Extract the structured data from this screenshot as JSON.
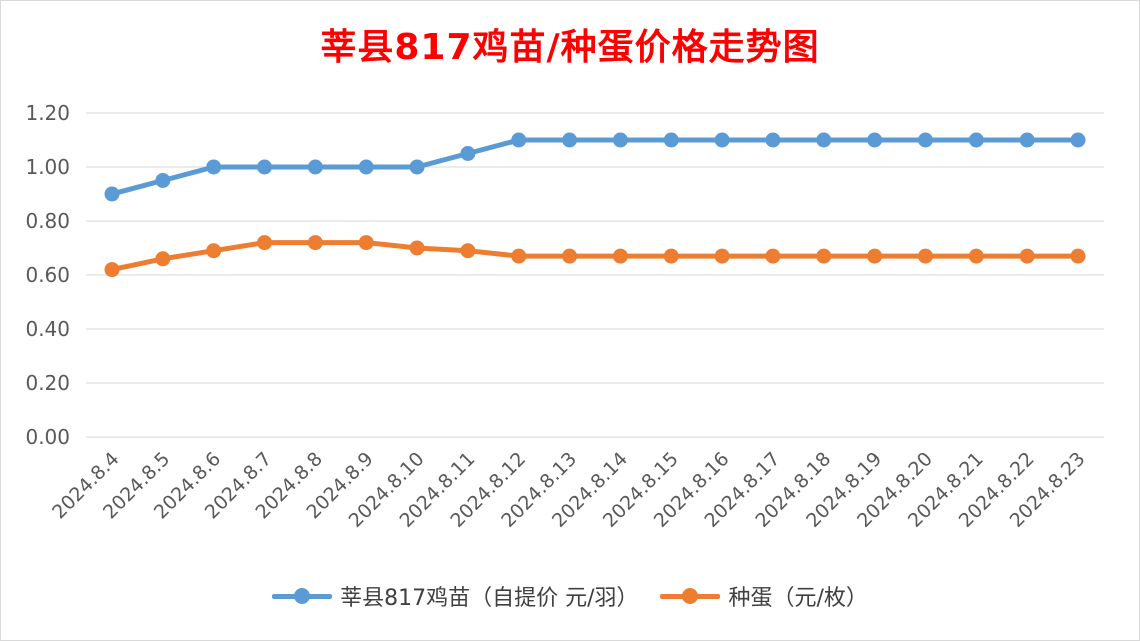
{
  "chart_data": {
    "type": "line",
    "title": "莘县817鸡苗/种蛋价格走势图",
    "xlabel": "",
    "ylabel": "",
    "ylim": [
      0,
      1.2
    ],
    "yticks": [
      "0.00",
      "0.20",
      "0.40",
      "0.60",
      "0.80",
      "1.00",
      "1.20"
    ],
    "grid": true,
    "legend_position": "bottom",
    "categories": [
      "2024.8.4",
      "2024.8.5",
      "2024.8.6",
      "2024.8.7",
      "2024.8.8",
      "2024.8.9",
      "2024.8.10",
      "2024.8.11",
      "2024.8.12",
      "2024.8.13",
      "2024.8.14",
      "2024.8.15",
      "2024.8.16",
      "2024.8.17",
      "2024.8.18",
      "2024.8.19",
      "2024.8.20",
      "2024.8.21",
      "2024.8.22",
      "2024.8.23"
    ],
    "series": [
      {
        "name": "莘县817鸡苗（自提价 元/羽）",
        "color": "#5b9bd5",
        "values": [
          0.9,
          0.95,
          1.0,
          1.0,
          1.0,
          1.0,
          1.0,
          1.05,
          1.1,
          1.1,
          1.1,
          1.1,
          1.1,
          1.1,
          1.1,
          1.1,
          1.1,
          1.1,
          1.1,
          1.1
        ]
      },
      {
        "name": "种蛋（元/枚）",
        "color": "#ed7d31",
        "values": [
          0.62,
          0.66,
          0.69,
          0.72,
          0.72,
          0.72,
          0.7,
          0.69,
          0.67,
          0.67,
          0.67,
          0.67,
          0.67,
          0.67,
          0.67,
          0.67,
          0.67,
          0.67,
          0.67,
          0.67
        ]
      }
    ]
  }
}
